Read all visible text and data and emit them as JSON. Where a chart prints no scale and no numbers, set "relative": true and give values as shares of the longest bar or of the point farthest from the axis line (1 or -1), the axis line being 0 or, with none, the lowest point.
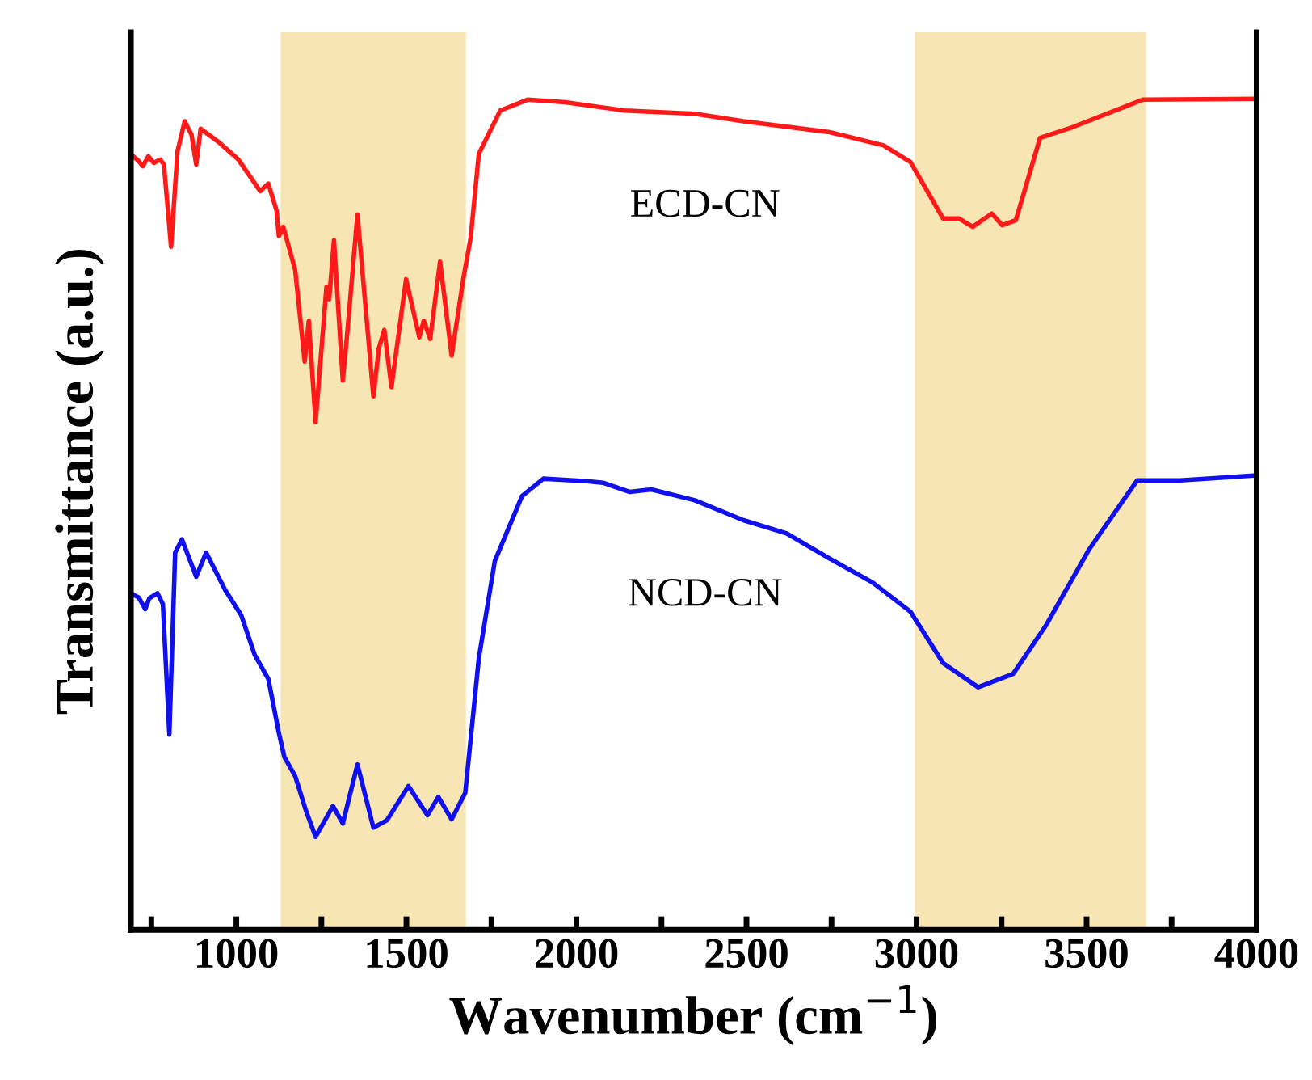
{
  "chart_data": {
    "type": "line",
    "relative": true,
    "xlabel": "Wavenumber (cm$^{−1}$)",
    "ylabel": "Transmittance (a.u.)",
    "xlim": [
      690,
      4000
    ],
    "xticks": [
      {
        "value": 750,
        "label": null
      },
      1000,
      {
        "value": 1250,
        "label": null
      },
      1500,
      {
        "value": 1750,
        "label": null
      },
      2000,
      {
        "value": 2250,
        "label": null
      },
      2500,
      {
        "value": 2750,
        "label": null
      },
      3000,
      {
        "value": 3250,
        "label": null
      },
      3500,
      {
        "value": 3750,
        "label": null
      },
      4000
    ],
    "tick_labels": "x",
    "grid": false,
    "legend": false,
    "marker": "none",
    "line_style": "solid",
    "bands": [
      {
        "axis": "x",
        "from": 1130,
        "to": 1675,
        "color": "#f8e5b4"
      },
      {
        "axis": "x",
        "from": 2995,
        "to": 3675,
        "color": "#f8e5b4"
      }
    ],
    "series": [
      {
        "name": "ECD-CN",
        "color": "#ff1a1a",
        "x": [
          694,
          713,
          725,
          741,
          757,
          776,
          787,
          808,
          827,
          848,
          868,
          882,
          895,
          951,
          1006,
          1070,
          1094,
          1118,
          1125,
          1138,
          1173,
          1201,
          1213,
          1233,
          1265,
          1273,
          1287,
          1313,
          1327,
          1356,
          1403,
          1419,
          1435,
          1456,
          1499,
          1538,
          1551,
          1570,
          1599,
          1633,
          1668,
          1689,
          1713,
          1776,
          1856,
          1967,
          2141,
          2348,
          2491,
          2744,
          2903,
          2982,
          3078,
          3125,
          3165,
          3221,
          3252,
          3292,
          3363,
          3459,
          3665,
          4000
        ],
        "values": [
          0.932,
          0.925,
          0.919,
          0.931,
          0.923,
          0.927,
          0.921,
          0.822,
          0.937,
          0.973,
          0.957,
          0.921,
          0.964,
          0.947,
          0.927,
          0.889,
          0.898,
          0.866,
          0.835,
          0.846,
          0.794,
          0.684,
          0.733,
          0.611,
          0.774,
          0.759,
          0.83,
          0.661,
          0.722,
          0.861,
          0.642,
          0.7,
          0.722,
          0.653,
          0.783,
          0.713,
          0.733,
          0.711,
          0.804,
          0.691,
          0.785,
          0.833,
          0.934,
          0.986,
          0.999,
          0.996,
          0.986,
          0.982,
          0.973,
          0.96,
          0.944,
          0.924,
          0.856,
          0.856,
          0.846,
          0.862,
          0.848,
          0.854,
          0.953,
          0.966,
          0.999,
          1.0
        ]
      },
      {
        "name": "NCD-CN",
        "color": "#1010ee",
        "x": [
          694,
          713,
          732,
          744,
          768,
          784,
          803,
          820,
          840,
          882,
          911,
          967,
          1014,
          1054,
          1094,
          1125,
          1141,
          1173,
          1205,
          1233,
          1284,
          1313,
          1356,
          1403,
          1443,
          1506,
          1562,
          1594,
          1633,
          1673,
          1713,
          1760,
          1840,
          1903,
          2030,
          2078,
          2157,
          2220,
          2348,
          2491,
          2618,
          2744,
          2871,
          2982,
          3078,
          3181,
          3284,
          3380,
          3506,
          3649,
          3776,
          4000
        ],
        "values": [
          0.404,
          0.4,
          0.386,
          0.399,
          0.405,
          0.392,
          0.235,
          0.454,
          0.47,
          0.425,
          0.454,
          0.409,
          0.379,
          0.331,
          0.302,
          0.237,
          0.208,
          0.185,
          0.143,
          0.112,
          0.149,
          0.128,
          0.199,
          0.123,
          0.132,
          0.173,
          0.138,
          0.16,
          0.133,
          0.165,
          0.327,
          0.444,
          0.522,
          0.543,
          0.54,
          0.538,
          0.527,
          0.53,
          0.517,
          0.493,
          0.477,
          0.447,
          0.418,
          0.383,
          0.321,
          0.292,
          0.308,
          0.366,
          0.457,
          0.541,
          0.541,
          0.547
        ]
      }
    ]
  }
}
